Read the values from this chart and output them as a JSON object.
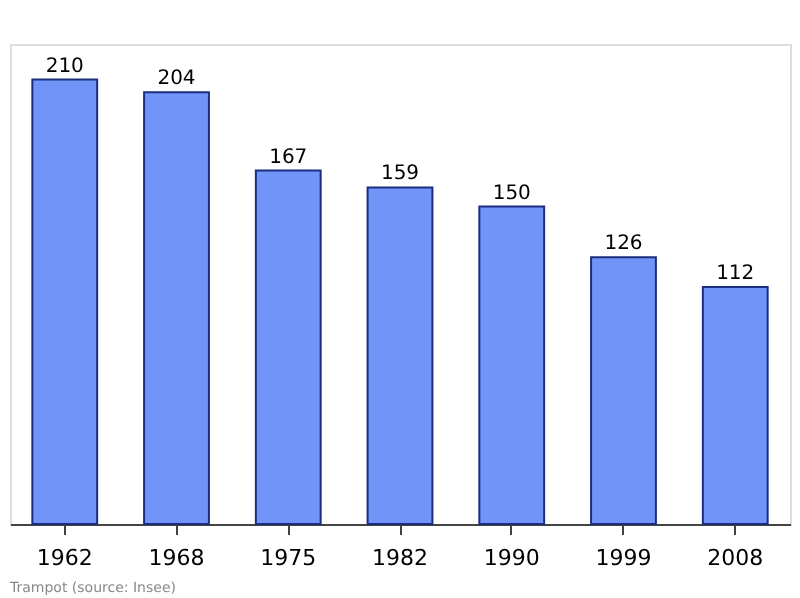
{
  "chart_data": {
    "type": "bar",
    "categories": [
      "1962",
      "1968",
      "1975",
      "1982",
      "1990",
      "1999",
      "2008"
    ],
    "values": [
      210,
      204,
      167,
      159,
      150,
      126,
      112
    ],
    "color": "#7094f7",
    "data_labels": true,
    "grid": false,
    "annotations": [
      "Trampot    (source: Insee)"
    ]
  }
}
